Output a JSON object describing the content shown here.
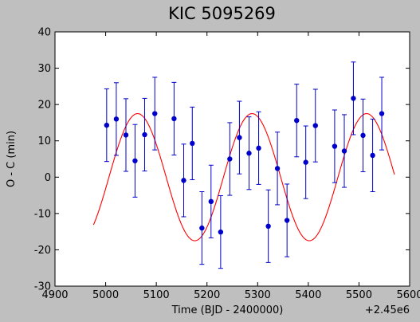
{
  "chart_data": {
    "type": "scatter",
    "title": "KIC 5095269",
    "xlabel": "Time (BJD - 2400000)",
    "ylabel": "O - C (min)",
    "x_offset_label": "+2.45e6",
    "xlim": [
      4900,
      5600
    ],
    "ylim": [
      -30,
      40
    ],
    "x_ticks": [
      4900,
      5000,
      5100,
      5200,
      5300,
      5400,
      5500,
      5600
    ],
    "y_ticks": [
      -30,
      -20,
      -10,
      0,
      10,
      20,
      30,
      40
    ],
    "grid": false,
    "colors": {
      "points": "#0000cc",
      "model_curve": "#ff0000",
      "plot_background": "#ffffff",
      "figure_background": "#bfbfbf"
    },
    "series": [
      {
        "type": "errorbar",
        "x": [
          5002,
          5021,
          5040,
          5058,
          5077,
          5097,
          5135,
          5154,
          5171,
          5190,
          5208,
          5227,
          5245,
          5264,
          5283,
          5302,
          5321,
          5339,
          5358,
          5377,
          5395,
          5414,
          5452,
          5471,
          5489,
          5508,
          5527,
          5545
        ],
        "y": [
          14.3,
          16.0,
          11.6,
          4.5,
          11.7,
          17.5,
          16.1,
          -0.9,
          9.3,
          -14.0,
          -6.7,
          -15.1,
          5.0,
          10.9,
          6.6,
          8.0,
          -13.5,
          2.4,
          -11.9,
          15.6,
          4.1,
          14.2,
          8.5,
          7.2,
          21.7,
          11.5,
          6.0,
          17.5
        ],
        "err": [
          10,
          10,
          10,
          10,
          10,
          10,
          10,
          10,
          10,
          10,
          10,
          10,
          10,
          10,
          10,
          10,
          10,
          10,
          10,
          10,
          10,
          10,
          10,
          10,
          10,
          10,
          10,
          10
        ]
      },
      {
        "type": "line",
        "model": "sine",
        "amplitude": 17.5,
        "offset": 0,
        "period": 226,
        "peak_x": 5063,
        "x_range": [
          4976,
          5570
        ]
      }
    ]
  }
}
